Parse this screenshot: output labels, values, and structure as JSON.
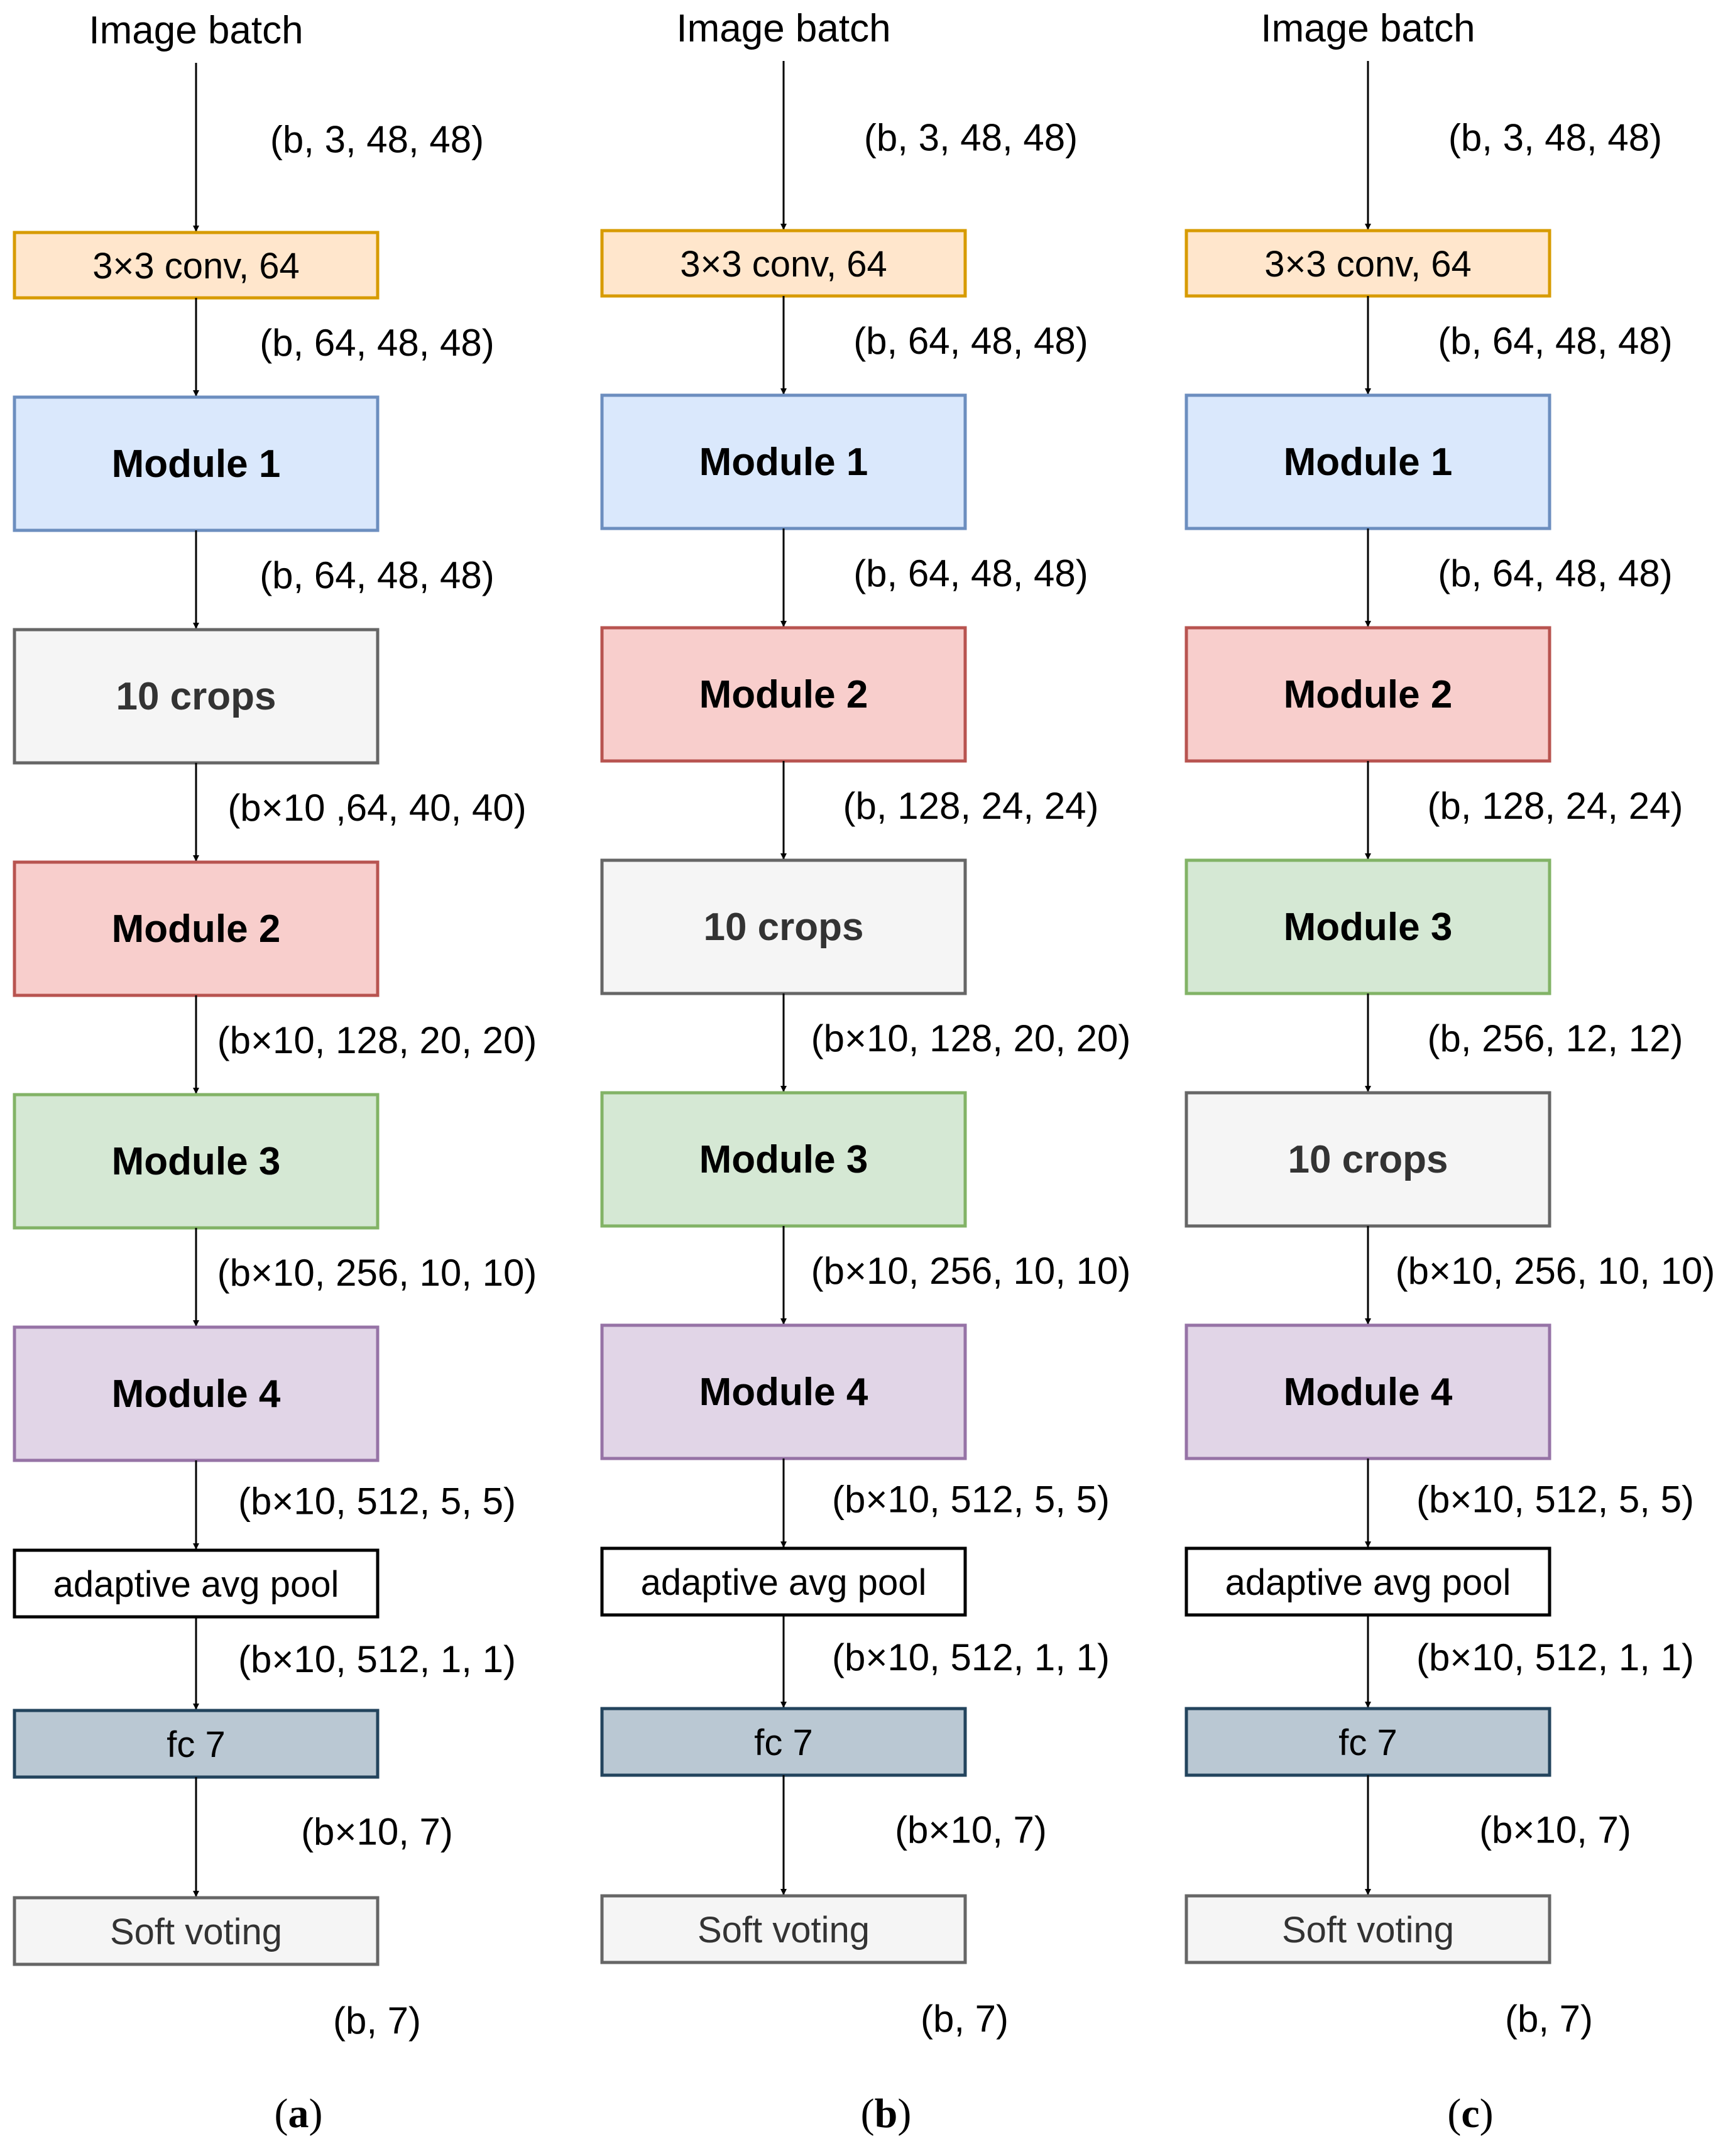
{
  "colors": {
    "conv": {
      "fill": "#ffe6cc",
      "stroke": "#d79b00"
    },
    "module1": {
      "fill": "#dae8fc",
      "stroke": "#6c8ebf"
    },
    "module2": {
      "fill": "#f8cecc",
      "stroke": "#b85450"
    },
    "module3": {
      "fill": "#d5e8d4",
      "stroke": "#82b366"
    },
    "module4": {
      "fill": "#e1d5e7",
      "stroke": "#9673a6"
    },
    "crops": {
      "fill": "#f5f5f5",
      "stroke": "#666666"
    },
    "pool": {
      "fill": "#ffffff",
      "stroke": "#000000"
    },
    "fc": {
      "fill": "#bac8d3",
      "stroke": "#23445d"
    },
    "vote": {
      "fill": "#f5f5f5",
      "stroke": "#666666"
    }
  },
  "columns": [
    {
      "id": "a",
      "input": "Image batch",
      "caption": {
        "open": "(",
        "letter": "a",
        "close": ")"
      },
      "final_shape": "(b, 7)",
      "blocks": [
        {
          "label": "3×3 conv, 64",
          "style": "conv",
          "bold": false,
          "shape_above": "(b, 3, 48, 48)"
        },
        {
          "label": "Module 1",
          "style": "module1",
          "bold": true,
          "shape_above": "(b, 64, 48, 48)"
        },
        {
          "label": "10 crops",
          "style": "crops",
          "bold": true,
          "shape_above": "(b, 64, 48, 48)"
        },
        {
          "label": "Module 2",
          "style": "module2",
          "bold": true,
          "shape_above": "(b×10 ,64, 40, 40)"
        },
        {
          "label": "Module 3",
          "style": "module3",
          "bold": true,
          "shape_above": "(b×10, 128, 20, 20)"
        },
        {
          "label": "Module 4",
          "style": "module4",
          "bold": true,
          "shape_above": "(b×10, 256, 10, 10)"
        },
        {
          "label": "adaptive avg pool",
          "style": "pool",
          "bold": false,
          "shape_above": "(b×10, 512, 5, 5)"
        },
        {
          "label": "fc 7",
          "style": "fc",
          "bold": false,
          "shape_above": "(b×10, 512, 1, 1)"
        },
        {
          "label": "Soft voting",
          "style": "vote",
          "bold": false,
          "shape_above": "(b×10, 7)"
        }
      ]
    },
    {
      "id": "b",
      "input": "Image batch",
      "caption": {
        "open": "(",
        "letter": "b",
        "close": ")"
      },
      "final_shape": "(b, 7)",
      "blocks": [
        {
          "label": "3×3 conv, 64",
          "style": "conv",
          "bold": false,
          "shape_above": "(b, 3, 48, 48)"
        },
        {
          "label": "Module 1",
          "style": "module1",
          "bold": true,
          "shape_above": "(b, 64, 48, 48)"
        },
        {
          "label": "Module 2",
          "style": "module2",
          "bold": true,
          "shape_above": "(b, 64, 48, 48)"
        },
        {
          "label": "10 crops",
          "style": "crops",
          "bold": true,
          "shape_above": "(b, 128, 24, 24)"
        },
        {
          "label": "Module 3",
          "style": "module3",
          "bold": true,
          "shape_above": "(b×10, 128, 20, 20)"
        },
        {
          "label": "Module 4",
          "style": "module4",
          "bold": true,
          "shape_above": "(b×10, 256, 10, 10)"
        },
        {
          "label": "adaptive avg pool",
          "style": "pool",
          "bold": false,
          "shape_above": "(b×10, 512, 5, 5)"
        },
        {
          "label": "fc 7",
          "style": "fc",
          "bold": false,
          "shape_above": "(b×10, 512, 1, 1)"
        },
        {
          "label": "Soft voting",
          "style": "vote",
          "bold": false,
          "shape_above": "(b×10, 7)"
        }
      ]
    },
    {
      "id": "c",
      "input": "Image batch",
      "caption": {
        "open": "(",
        "letter": "c",
        "close": ")"
      },
      "final_shape": "(b, 7)",
      "blocks": [
        {
          "label": "3×3 conv, 64",
          "style": "conv",
          "bold": false,
          "shape_above": "(b, 3, 48, 48)"
        },
        {
          "label": "Module 1",
          "style": "module1",
          "bold": true,
          "shape_above": "(b, 64, 48, 48)"
        },
        {
          "label": "Module 2",
          "style": "module2",
          "bold": true,
          "shape_above": "(b, 64, 48, 48)"
        },
        {
          "label": "Module 3",
          "style": "module3",
          "bold": true,
          "shape_above": "(b, 128, 24, 24)"
        },
        {
          "label": "10 crops",
          "style": "crops",
          "bold": true,
          "shape_above": "(b, 256, 12, 12)"
        },
        {
          "label": "Module 4",
          "style": "module4",
          "bold": true,
          "shape_above": "(b×10, 256, 10, 10)"
        },
        {
          "label": "adaptive avg pool",
          "style": "pool",
          "bold": false,
          "shape_above": "(b×10, 512, 5, 5)"
        },
        {
          "label": "fc 7",
          "style": "fc",
          "bold": false,
          "shape_above": "(b×10, 512, 1, 1)"
        },
        {
          "label": "Soft voting",
          "style": "vote",
          "bold": false,
          "shape_above": "(b×10, 7)"
        }
      ]
    }
  ]
}
